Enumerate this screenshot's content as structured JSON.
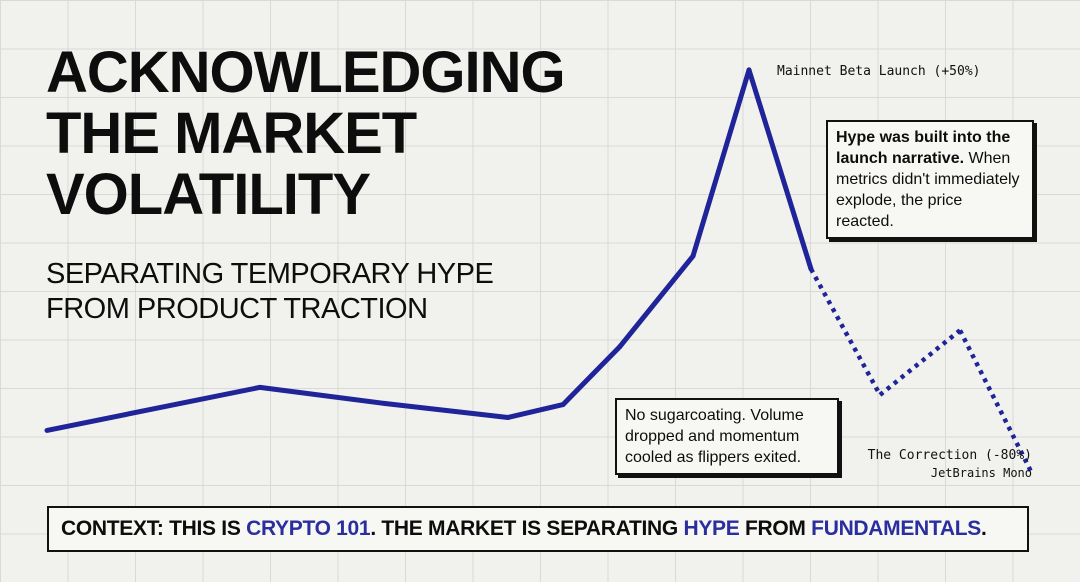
{
  "header": {
    "title_lines": [
      "ACKNOWLEDGING",
      "THE MARKET",
      "VOLATILITY"
    ],
    "subtitle_lines": [
      "SEPARATING TEMPORARY HYPE",
      "FROM PRODUCT TRACTION"
    ]
  },
  "colors": {
    "line": "#1f2498",
    "accent": "#2a2e9e",
    "ink": "#0d0d0d",
    "background": "#f1f1ee"
  },
  "chart_data": {
    "type": "line",
    "title": "",
    "xlabel": "",
    "ylabel": "",
    "grid": true,
    "x": [
      0,
      1,
      2,
      3,
      4,
      5,
      6,
      7,
      8,
      9,
      10,
      11
    ],
    "series": [
      {
        "values": [
          100,
          140,
          125,
          112,
          124,
          178,
          262,
          435,
          250,
          133,
          193,
          60
        ],
        "style": [
          "solid",
          "solid",
          "solid",
          "solid",
          "solid",
          "solid",
          "solid",
          "solid",
          "dotted",
          "dotted",
          "dotted"
        ]
      }
    ],
    "annotations": {
      "peak_label": "Mainnet Beta Launch (+50%)",
      "correction_label": "The Correction (-80%)",
      "font_caption": "JetBrains Mono"
    }
  },
  "callouts": {
    "top": {
      "bold_lines": "Hype was built into the launch narrative.",
      "regular_lines": "When metrics didn't immediately explode, the price reacted."
    },
    "middle": "No sugarcoating. Volume dropped and momentum cooled as flippers exited."
  },
  "context_bar": {
    "prefix": "CONTEXT: THIS IS ",
    "crypto": "CRYPTO 101",
    "middle": ". THE MARKET IS SEPARATING ",
    "hype": "HYPE",
    "from": " FROM ",
    "fundamentals": "FUNDAMENTALS",
    "end": "."
  }
}
